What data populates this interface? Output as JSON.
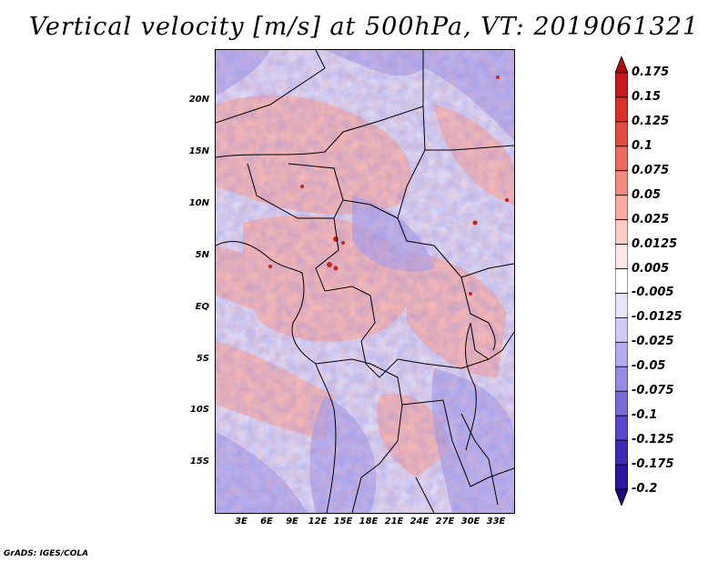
{
  "title": "Vertical velocity [m/s] at 500hPa, VT: 2019061321",
  "credit": "GrADS: IGES/COLA",
  "map": {
    "variable": "Vertical velocity",
    "units": "m/s",
    "level": "500hPa",
    "valid_time": "2019061321",
    "lat_labels": [
      "20N",
      "15N",
      "10N",
      "5N",
      "EQ",
      "5S",
      "10S",
      "15S"
    ],
    "lon_labels": [
      "3E",
      "6E",
      "9E",
      "12E",
      "15E",
      "18E",
      "21E",
      "24E",
      "27E",
      "30E",
      "33E"
    ]
  },
  "colorbar": {
    "labels": [
      "0.175",
      "0.15",
      "0.125",
      "0.1",
      "0.075",
      "0.05",
      "0.025",
      "0.0125",
      "0.005",
      "-0.005",
      "-0.0125",
      "-0.025",
      "-0.05",
      "-0.075",
      "-0.1",
      "-0.125",
      "-0.175",
      "-0.2"
    ],
    "colors": [
      "#a50f15",
      "#cb181d",
      "#d9302b",
      "#e34a42",
      "#ef6a5e",
      "#f48a80",
      "#f8aca3",
      "#fbcbc5",
      "#fde7e4",
      "#ffffff",
      "#e6e4fb",
      "#cfcaf7",
      "#b3acf0",
      "#958be6",
      "#776bdb",
      "#5849cc",
      "#3d2bb8",
      "#2a16a0",
      "#1a0a80"
    ]
  },
  "colors": {
    "positive": "#e8443a",
    "negative": "#3b3bdc"
  }
}
